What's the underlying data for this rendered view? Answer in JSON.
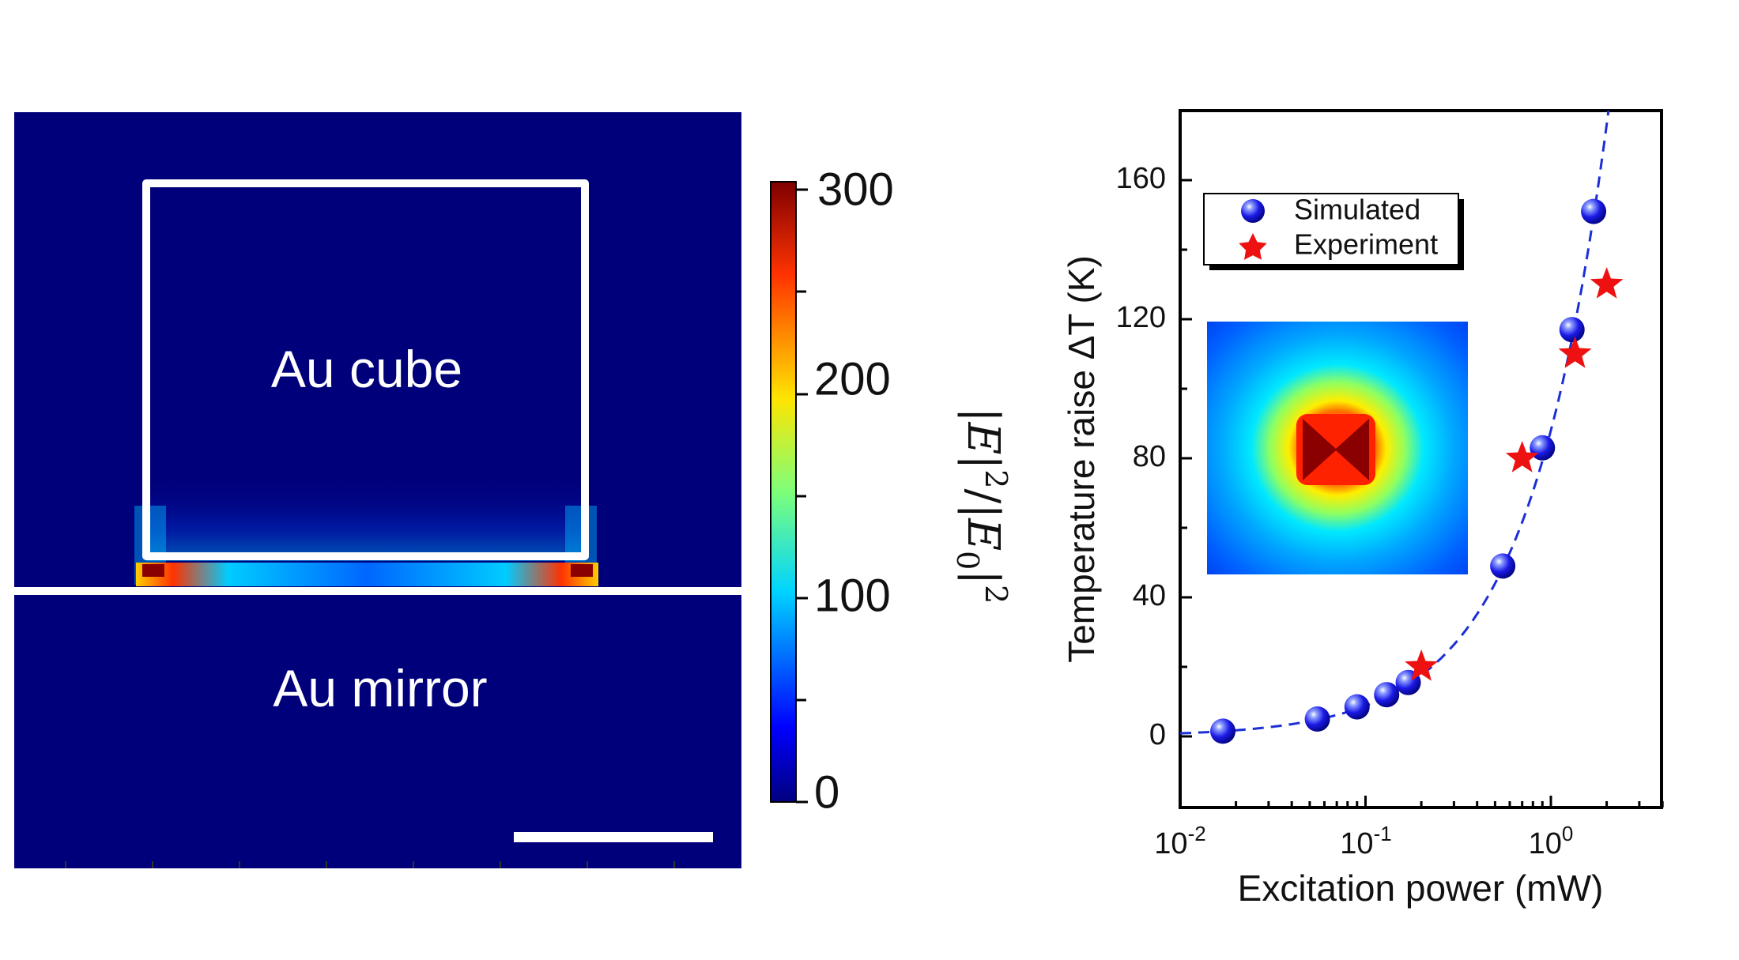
{
  "field_map": {
    "labels": {
      "cube": "Au cube",
      "mirror": "Au mirror"
    },
    "colorbar": {
      "ticks": [
        "300",
        "200",
        "100",
        "0"
      ],
      "range": [
        0,
        300
      ],
      "title_parts": [
        "|",
        "E",
        "|",
        "2",
        "/|",
        "E",
        "0",
        "|",
        "2"
      ]
    },
    "colors": {
      "background": "#00007a",
      "outline": "#ffffff"
    }
  },
  "chart_data": {
    "type": "scatter",
    "xscale": "log",
    "xlim": [
      0.01,
      4
    ],
    "ylim": [
      -20,
      178
    ],
    "xlabel": "Excitation power (mW)",
    "ylabel": "Temperature raise ΔT (K)",
    "yticks": [
      "0",
      "40",
      "80",
      "120",
      "160"
    ],
    "xtick_labels": [
      {
        "base": "10",
        "exp": "-2"
      },
      {
        "base": "10",
        "exp": "-1"
      },
      {
        "base": "10",
        "exp": "0"
      }
    ],
    "series": [
      {
        "name": "Simulated",
        "marker": "sphere",
        "color": "#1a1ae6",
        "points": [
          [
            0.017,
            1.5
          ],
          [
            0.055,
            5
          ],
          [
            0.09,
            8.5
          ],
          [
            0.13,
            12
          ],
          [
            0.17,
            15.5
          ],
          [
            0.55,
            49
          ],
          [
            0.9,
            83
          ],
          [
            1.3,
            117
          ],
          [
            1.7,
            151
          ]
        ]
      },
      {
        "name": "Experiment",
        "marker": "star",
        "color": "#ee1111",
        "points": [
          [
            0.2,
            20
          ],
          [
            0.7,
            80
          ],
          [
            1.35,
            110
          ],
          [
            2.0,
            130
          ]
        ]
      }
    ],
    "fit": {
      "style": "dashed",
      "color": "#1c2fd6",
      "slope_per_mW": 88
    },
    "inset": "heat map"
  }
}
